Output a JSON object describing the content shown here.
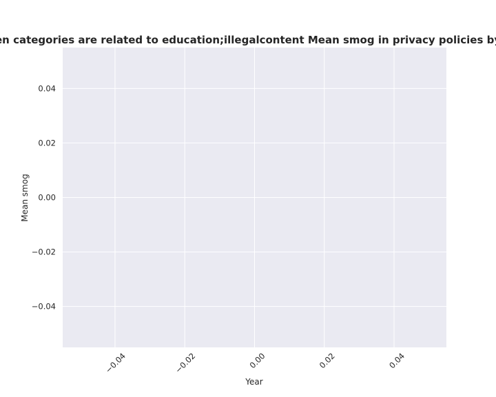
{
  "chart_data": {
    "type": "line",
    "title": "when categories are related to education;illegalcontent Mean smog in privacy policies by Year",
    "xlabel": "Year",
    "ylabel": "Mean smog",
    "xlim": [
      -0.055,
      0.055
    ],
    "ylim": [
      -0.055,
      0.055
    ],
    "x_ticks": [
      -0.04,
      -0.02,
      0.0,
      0.02,
      0.04
    ],
    "x_tick_labels": [
      "−0.04",
      "−0.02",
      "0.00",
      "0.02",
      "0.04"
    ],
    "y_ticks": [
      0.04,
      0.02,
      0.0,
      -0.02,
      -0.04
    ],
    "y_tick_labels": [
      "0.04",
      "0.02",
      "0.00",
      "−0.02",
      "−0.04"
    ],
    "x_tick_rotation": -45,
    "grid": true,
    "background": "#eaeaf2",
    "grid_color": "#ffffff",
    "series": []
  }
}
